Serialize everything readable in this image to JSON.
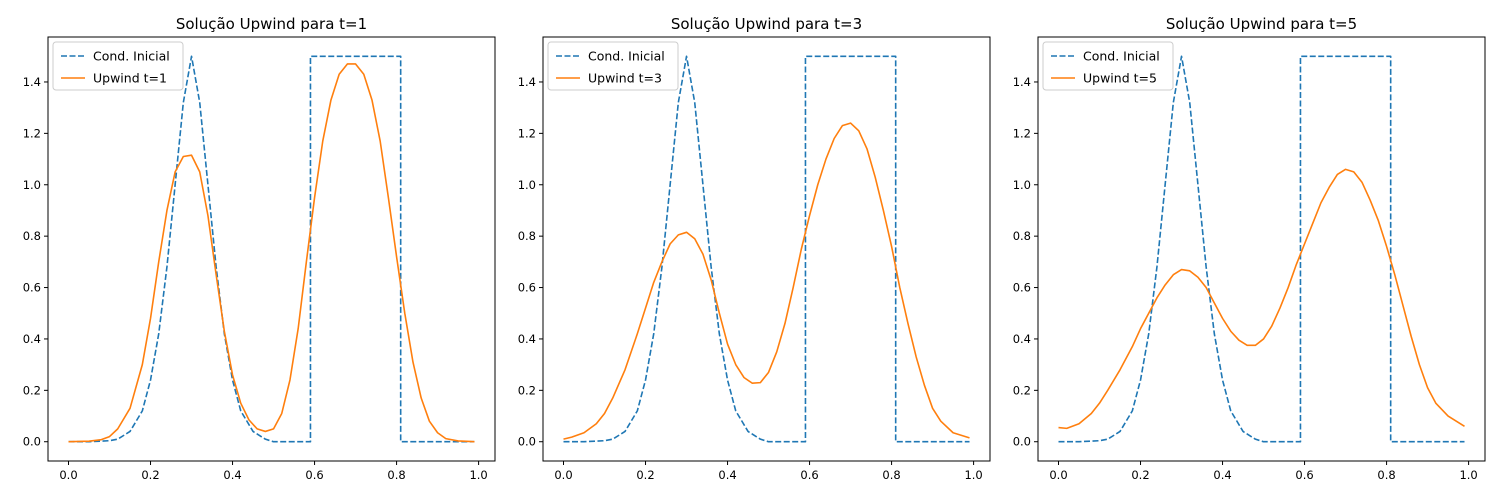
{
  "colors": {
    "initial": "#1f77b4",
    "upwind": "#ff7f0e"
  },
  "chart_data": [
    {
      "type": "line",
      "title": "Solução Upwind para t=1",
      "xlabel": "",
      "ylabel": "",
      "xlim": [
        -0.05,
        1.04
      ],
      "ylim": [
        -0.075,
        1.575
      ],
      "xticks": [
        "0.0",
        "0.2",
        "0.4",
        "0.6",
        "0.8",
        "1.0"
      ],
      "yticks": [
        "0.0",
        "0.2",
        "0.4",
        "0.6",
        "0.8",
        "1.0",
        "1.2",
        "1.4"
      ],
      "legend": {
        "position": "top-left",
        "entries": [
          "Cond. Inicial",
          "Upwind t=1"
        ]
      },
      "series": [
        {
          "name": "Cond. Inicial",
          "style": "dashed",
          "x": [
            0.0,
            0.05,
            0.1,
            0.12,
            0.15,
            0.18,
            0.2,
            0.22,
            0.24,
            0.26,
            0.28,
            0.3,
            0.32,
            0.34,
            0.36,
            0.38,
            0.4,
            0.42,
            0.45,
            0.48,
            0.5,
            0.55,
            0.59,
            0.59,
            0.8,
            0.81,
            0.81,
            0.9,
            0.99
          ],
          "y": [
            0.0,
            0.0,
            0.004,
            0.01,
            0.04,
            0.12,
            0.24,
            0.42,
            0.68,
            1.0,
            1.32,
            1.5,
            1.32,
            1.0,
            0.68,
            0.42,
            0.24,
            0.12,
            0.04,
            0.01,
            0.0,
            0.0,
            0.0,
            1.5,
            1.5,
            1.5,
            0.0,
            0.0,
            0.0
          ]
        },
        {
          "name": "Upwind t=1",
          "style": "solid",
          "x": [
            0.0,
            0.05,
            0.08,
            0.1,
            0.12,
            0.15,
            0.18,
            0.2,
            0.22,
            0.24,
            0.26,
            0.28,
            0.3,
            0.32,
            0.34,
            0.36,
            0.38,
            0.4,
            0.42,
            0.44,
            0.46,
            0.48,
            0.5,
            0.52,
            0.54,
            0.56,
            0.58,
            0.6,
            0.62,
            0.64,
            0.66,
            0.68,
            0.7,
            0.72,
            0.74,
            0.76,
            0.78,
            0.8,
            0.82,
            0.84,
            0.86,
            0.88,
            0.9,
            0.92,
            0.95,
            0.99
          ],
          "y": [
            0.0,
            0.002,
            0.008,
            0.02,
            0.05,
            0.13,
            0.3,
            0.48,
            0.7,
            0.9,
            1.05,
            1.11,
            1.115,
            1.05,
            0.88,
            0.65,
            0.43,
            0.26,
            0.15,
            0.085,
            0.05,
            0.04,
            0.05,
            0.11,
            0.24,
            0.44,
            0.7,
            0.95,
            1.17,
            1.33,
            1.43,
            1.47,
            1.47,
            1.43,
            1.33,
            1.17,
            0.95,
            0.72,
            0.5,
            0.31,
            0.17,
            0.08,
            0.035,
            0.012,
            0.003,
            0.0
          ]
        }
      ]
    },
    {
      "type": "line",
      "title": "Solução Upwind para t=3",
      "xlabel": "",
      "ylabel": "",
      "xlim": [
        -0.05,
        1.04
      ],
      "ylim": [
        -0.075,
        1.575
      ],
      "xticks": [
        "0.0",
        "0.2",
        "0.4",
        "0.6",
        "0.8",
        "1.0"
      ],
      "yticks": [
        "0.0",
        "0.2",
        "0.4",
        "0.6",
        "0.8",
        "1.0",
        "1.2",
        "1.4"
      ],
      "legend": {
        "position": "top-left",
        "entries": [
          "Cond. Inicial",
          "Upwind t=3"
        ]
      },
      "series": [
        {
          "name": "Cond. Inicial",
          "style": "dashed",
          "x": [
            0.0,
            0.05,
            0.1,
            0.12,
            0.15,
            0.18,
            0.2,
            0.22,
            0.24,
            0.26,
            0.28,
            0.3,
            0.32,
            0.34,
            0.36,
            0.38,
            0.4,
            0.42,
            0.45,
            0.48,
            0.5,
            0.55,
            0.59,
            0.59,
            0.8,
            0.81,
            0.81,
            0.9,
            0.99
          ],
          "y": [
            0.0,
            0.0,
            0.004,
            0.01,
            0.04,
            0.12,
            0.24,
            0.42,
            0.68,
            1.0,
            1.32,
            1.5,
            1.32,
            1.0,
            0.68,
            0.42,
            0.24,
            0.12,
            0.04,
            0.01,
            0.0,
            0.0,
            0.0,
            1.5,
            1.5,
            1.5,
            0.0,
            0.0,
            0.0
          ]
        },
        {
          "name": "Upwind t=3",
          "style": "solid",
          "x": [
            0.0,
            0.02,
            0.05,
            0.08,
            0.1,
            0.12,
            0.15,
            0.18,
            0.2,
            0.22,
            0.24,
            0.26,
            0.28,
            0.3,
            0.32,
            0.34,
            0.36,
            0.38,
            0.4,
            0.42,
            0.44,
            0.46,
            0.48,
            0.5,
            0.52,
            0.54,
            0.56,
            0.58,
            0.6,
            0.62,
            0.64,
            0.66,
            0.68,
            0.7,
            0.72,
            0.74,
            0.76,
            0.78,
            0.8,
            0.82,
            0.84,
            0.86,
            0.88,
            0.9,
            0.92,
            0.95,
            0.99
          ],
          "y": [
            0.01,
            0.018,
            0.035,
            0.07,
            0.11,
            0.17,
            0.28,
            0.42,
            0.52,
            0.62,
            0.7,
            0.77,
            0.805,
            0.815,
            0.79,
            0.73,
            0.63,
            0.5,
            0.38,
            0.3,
            0.25,
            0.228,
            0.23,
            0.27,
            0.35,
            0.46,
            0.6,
            0.75,
            0.88,
            1.0,
            1.1,
            1.18,
            1.23,
            1.24,
            1.21,
            1.14,
            1.03,
            0.9,
            0.76,
            0.6,
            0.46,
            0.33,
            0.22,
            0.13,
            0.08,
            0.035,
            0.015
          ]
        }
      ]
    },
    {
      "type": "line",
      "title": "Solução Upwind para t=5",
      "xlabel": "",
      "ylabel": "",
      "xlim": [
        -0.05,
        1.04
      ],
      "ylim": [
        -0.075,
        1.575
      ],
      "xticks": [
        "0.0",
        "0.2",
        "0.4",
        "0.6",
        "0.8",
        "1.0"
      ],
      "yticks": [
        "0.0",
        "0.2",
        "0.4",
        "0.6",
        "0.8",
        "1.0",
        "1.2",
        "1.4"
      ],
      "legend": {
        "position": "top-left",
        "entries": [
          "Cond. Inicial",
          "Upwind t=5"
        ]
      },
      "series": [
        {
          "name": "Cond. Inicial",
          "style": "dashed",
          "x": [
            0.0,
            0.05,
            0.1,
            0.12,
            0.15,
            0.18,
            0.2,
            0.22,
            0.24,
            0.26,
            0.28,
            0.3,
            0.32,
            0.34,
            0.36,
            0.38,
            0.4,
            0.42,
            0.45,
            0.48,
            0.5,
            0.55,
            0.59,
            0.59,
            0.8,
            0.81,
            0.81,
            0.9,
            0.99
          ],
          "y": [
            0.0,
            0.0,
            0.004,
            0.01,
            0.04,
            0.12,
            0.24,
            0.42,
            0.68,
            1.0,
            1.32,
            1.5,
            1.32,
            1.0,
            0.68,
            0.42,
            0.24,
            0.12,
            0.04,
            0.01,
            0.0,
            0.0,
            0.0,
            1.5,
            1.5,
            1.5,
            0.0,
            0.0,
            0.0
          ]
        },
        {
          "name": "Upwind t=5",
          "style": "solid",
          "x": [
            0.0,
            0.02,
            0.05,
            0.08,
            0.1,
            0.12,
            0.15,
            0.18,
            0.2,
            0.22,
            0.24,
            0.26,
            0.28,
            0.3,
            0.32,
            0.34,
            0.36,
            0.38,
            0.4,
            0.42,
            0.44,
            0.46,
            0.48,
            0.5,
            0.52,
            0.54,
            0.56,
            0.58,
            0.6,
            0.62,
            0.64,
            0.66,
            0.68,
            0.7,
            0.72,
            0.74,
            0.76,
            0.78,
            0.8,
            0.82,
            0.84,
            0.86,
            0.88,
            0.9,
            0.92,
            0.95,
            0.99
          ],
          "y": [
            0.055,
            0.052,
            0.07,
            0.11,
            0.15,
            0.2,
            0.28,
            0.37,
            0.44,
            0.5,
            0.56,
            0.61,
            0.65,
            0.67,
            0.665,
            0.64,
            0.6,
            0.54,
            0.48,
            0.43,
            0.395,
            0.375,
            0.375,
            0.4,
            0.45,
            0.52,
            0.6,
            0.69,
            0.77,
            0.85,
            0.93,
            0.99,
            1.04,
            1.06,
            1.05,
            1.01,
            0.94,
            0.86,
            0.76,
            0.65,
            0.53,
            0.41,
            0.3,
            0.21,
            0.15,
            0.1,
            0.06
          ]
        }
      ]
    }
  ]
}
